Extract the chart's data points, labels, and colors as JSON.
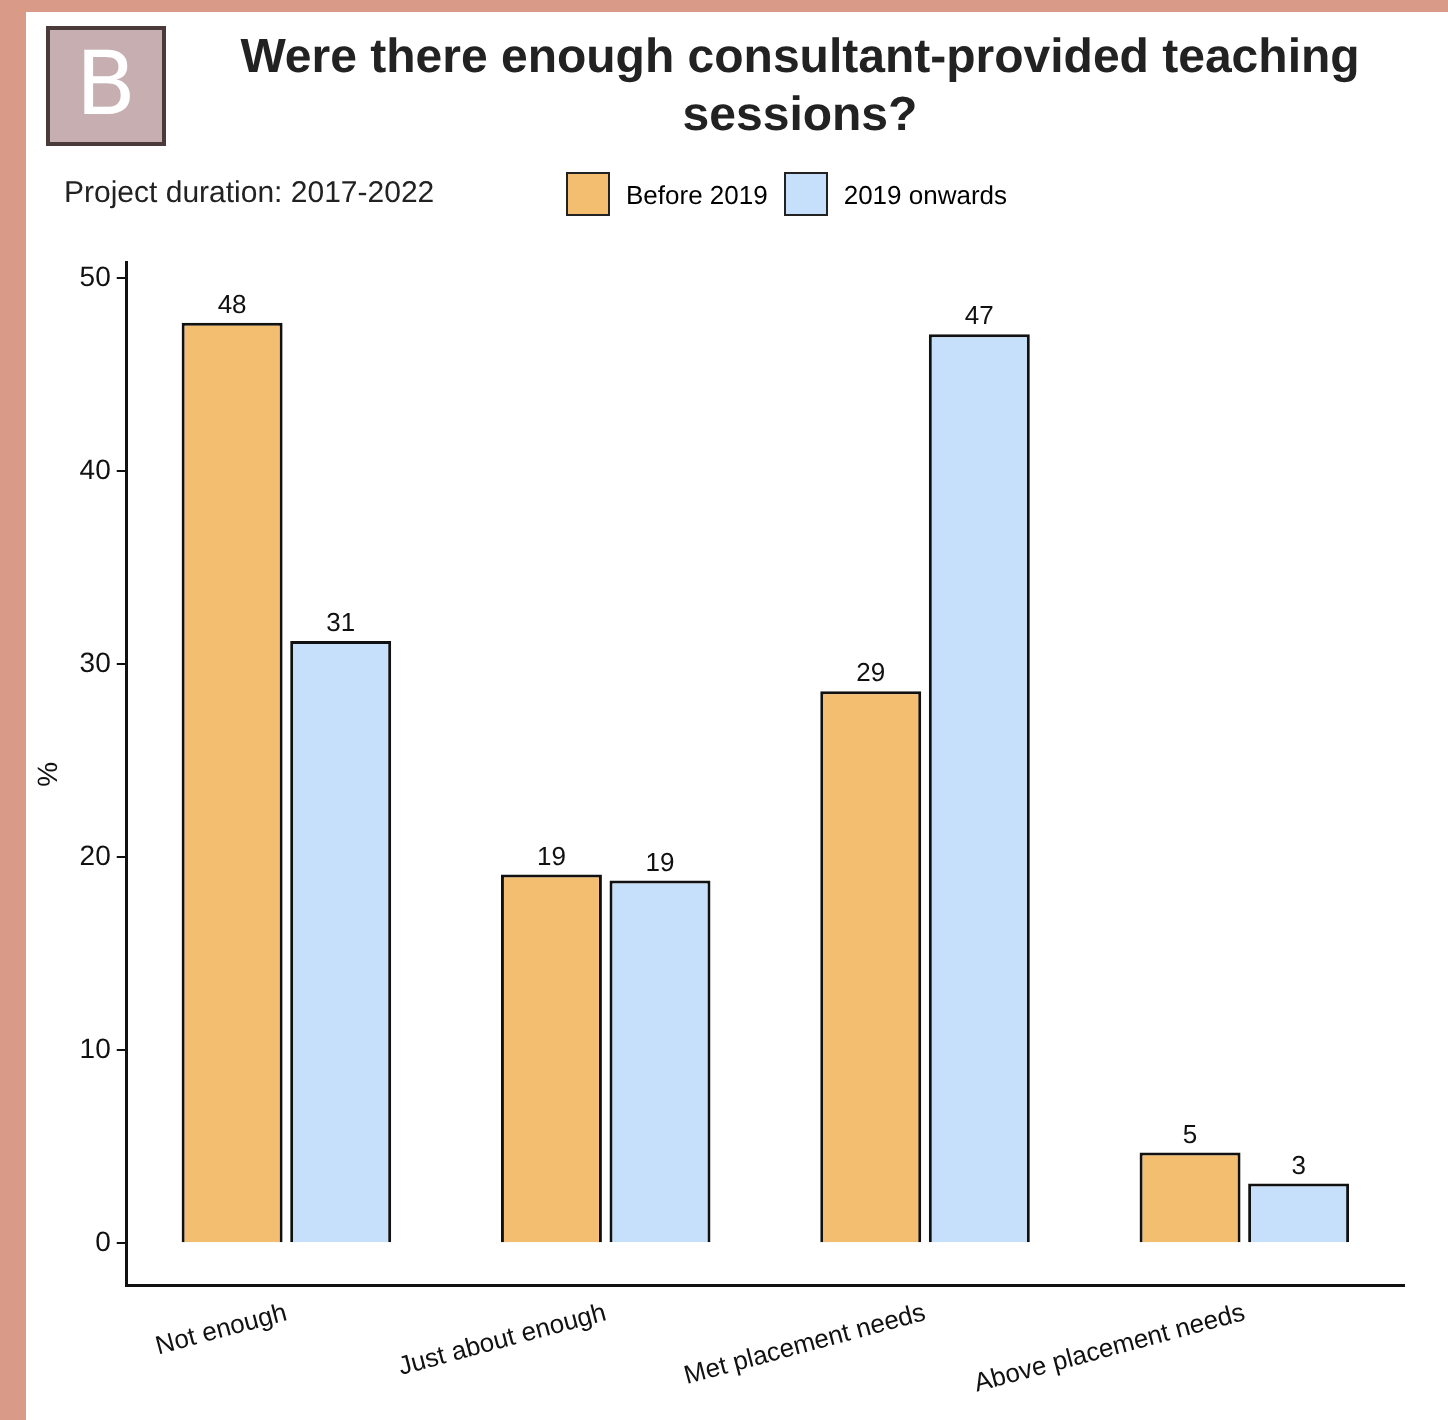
{
  "chart_data": {
    "type": "bar",
    "title": "Were there enough consultant-provided teaching sessions?",
    "subtitle": "Project duration: 2017-2022",
    "annotations": [
      "B"
    ],
    "ylabel": "%",
    "categories": [
      "Not enough",
      "Just about enough",
      "Met placement needs",
      "Above placement needs"
    ],
    "series": [
      {
        "name": "Before 2019",
        "color": "#f4be71",
        "values": [
          47.7,
          19.1,
          28.6,
          4.7
        ],
        "value_labels": [
          "48",
          "19",
          "29",
          "5"
        ]
      },
      {
        "name": "2019 onwards",
        "color": "#c6e0fc",
        "values": [
          31.2,
          18.8,
          47.1,
          3.1
        ],
        "value_labels": [
          "31",
          "19",
          "47",
          "3"
        ]
      }
    ],
    "ylim": [
      -2.2,
      50.8
    ],
    "yticks": [
      0,
      10,
      20,
      30,
      40,
      50
    ],
    "legend": "top"
  }
}
